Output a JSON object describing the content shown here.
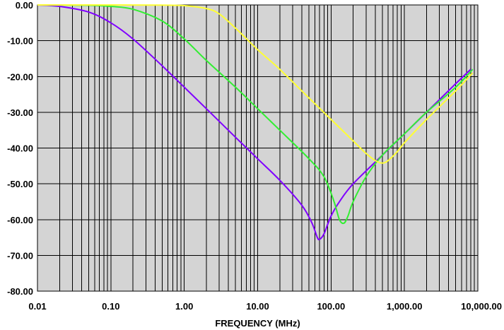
{
  "chart_data": {
    "type": "line",
    "title": "",
    "xlabel": "FREQUENCY (MHz)",
    "ylabel": "",
    "x_scale": "log",
    "xlim": [
      0.01,
      10000
    ],
    "ylim": [
      -80,
      0
    ],
    "x_ticks": [
      "0.01",
      "0.10",
      "1.00",
      "10.00",
      "100.00",
      "1,000.00",
      "10,000.00"
    ],
    "y_ticks": [
      "0.00",
      "-10.00",
      "-20.00",
      "-30.00",
      "-40.00",
      "-50.00",
      "-60.00",
      "-70.00",
      "-80.00"
    ],
    "grid": true,
    "background_color": "#d4d4d4",
    "series": [
      {
        "color": "#8000ff",
        "x": [
          0.01,
          0.02,
          0.05,
          0.1,
          0.2,
          0.5,
          1,
          2,
          5,
          10,
          20,
          40,
          55,
          65,
          70,
          80,
          100,
          130,
          200,
          500,
          1000,
          2000,
          5000,
          8000
        ],
        "y": [
          0,
          -0.4,
          -2,
          -5,
          -9.5,
          -17,
          -23,
          -29,
          -37,
          -43,
          -49,
          -56,
          -61,
          -65,
          -65.5,
          -64,
          -59,
          -55,
          -50,
          -42,
          -36,
          -30,
          -22,
          -18
        ]
      },
      {
        "color": "#33ee33",
        "x": [
          0.01,
          0.05,
          0.1,
          0.2,
          0.5,
          1,
          2,
          5,
          10,
          20,
          50,
          80,
          110,
          130,
          150,
          170,
          200,
          300,
          500,
          1000,
          2000,
          5000,
          8500
        ],
        "y": [
          0,
          -0.1,
          -0.4,
          -1.2,
          -4.5,
          -9.5,
          -15.5,
          -23,
          -29,
          -35,
          -43,
          -48,
          -55,
          -60,
          -61,
          -59,
          -55,
          -48,
          -42,
          -36,
          -30,
          -23,
          -18
        ]
      },
      {
        "color": "#ffff33",
        "x": [
          0.01,
          0.1,
          0.5,
          1,
          2,
          3,
          5,
          10,
          20,
          50,
          100,
          200,
          300,
          400,
          500,
          600,
          800,
          1000,
          2000,
          5000,
          8500
        ],
        "y": [
          0,
          0,
          -0.05,
          -0.2,
          -1,
          -2.5,
          -6.5,
          -12.5,
          -18,
          -26,
          -32,
          -38,
          -41.5,
          -43.5,
          -44.2,
          -43.5,
          -41,
          -38.5,
          -32,
          -24,
          -19
        ]
      }
    ]
  }
}
